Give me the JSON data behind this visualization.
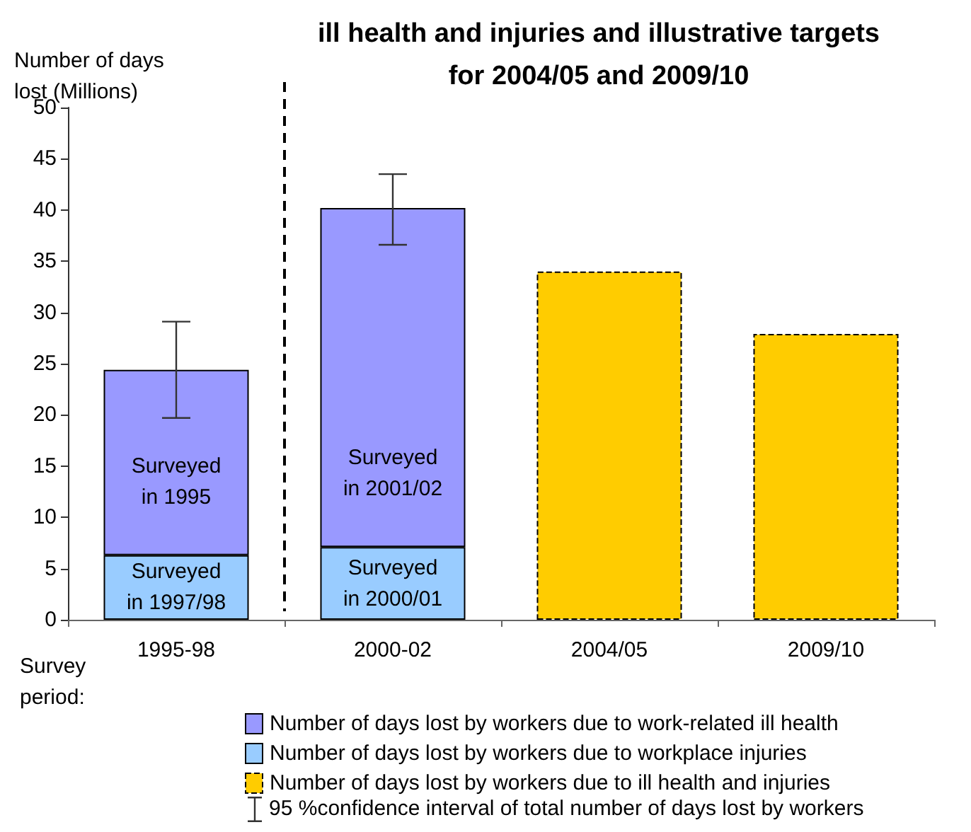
{
  "chart_data": {
    "type": "bar",
    "title": "ill health and injuries and illustrative targets\nfor 2004/05 and 2009/10",
    "ylabel": "Number of days\nlost (Millions)",
    "xlabel": "Survey\nperiod:",
    "categories": [
      "1995-98",
      "2000-02",
      "2004/05",
      "2009/10"
    ],
    "stacked": true,
    "series": [
      {
        "name": "Number of days lost by workers due to workplace injuries",
        "color": "#99ccff",
        "values": [
          6.3,
          7.1,
          null,
          null
        ],
        "value_labels": [
          "Surveyed\nin 1997/98",
          "Surveyed\nin 2000/01",
          null,
          null
        ]
      },
      {
        "name": "Number of days lost by workers due to work-related ill health",
        "color": "#9999ff",
        "values": [
          18.1,
          33.1,
          null,
          null
        ],
        "value_labels": [
          "Surveyed\nin 1995",
          "Surveyed\nin 2001/02",
          null,
          null
        ],
        "errors": [
          [
            19.7,
            29.1
          ],
          [
            36.6,
            43.5
          ],
          null,
          null
        ]
      },
      {
        "name": "Number of days lost by workers due to ill health and injuries",
        "color": "#ffcc00",
        "values": [
          null,
          null,
          34.0,
          27.9
        ],
        "line_style": "dashed"
      }
    ],
    "annotations": [
      "95 %confidence interval of total number of days lost by workers"
    ],
    "ylim": [
      0,
      50
    ],
    "yticks": [
      0,
      5,
      10,
      15,
      20,
      25,
      30,
      35,
      40,
      45,
      50
    ],
    "grid": false,
    "legend": "bottom"
  }
}
